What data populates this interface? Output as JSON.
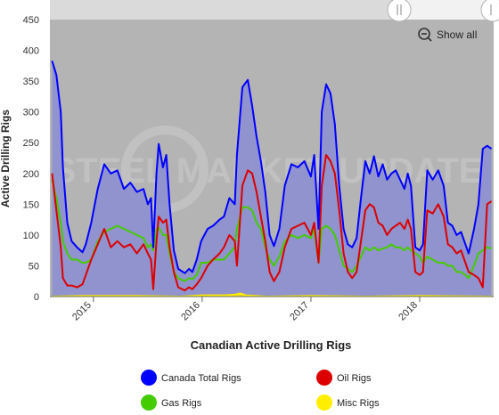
{
  "chart_data": {
    "type": "area",
    "title": "",
    "xlabel": "Canadian Active Drilling Rigs",
    "ylabel": "Active Drilling Rigs",
    "ylim": [
      0,
      450
    ],
    "xlim": [
      2014.6,
      2018.68
    ],
    "y_ticks": [
      0,
      50,
      100,
      150,
      200,
      250,
      300,
      350,
      400,
      450
    ],
    "x_ticks": [
      {
        "label": "2015",
        "value": 2015.0
      },
      {
        "label": "2016",
        "value": 2016.0
      },
      {
        "label": "2017",
        "value": 2017.0
      },
      {
        "label": "2018",
        "value": 2018.0
      }
    ],
    "grid": false,
    "legend_position": "bottom",
    "show_all_label": "Show all",
    "watermark_text": "STEEL MARKET UPDATE",
    "series": [
      {
        "name": "Canada Total Rigs",
        "color": "#0000ff",
        "points": [
          [
            2014.62,
            383
          ],
          [
            2014.66,
            360
          ],
          [
            2014.7,
            300
          ],
          [
            2014.72,
            210
          ],
          [
            2014.76,
            120
          ],
          [
            2014.8,
            90
          ],
          [
            2014.85,
            80
          ],
          [
            2014.9,
            72
          ],
          [
            2014.93,
            85
          ],
          [
            2014.98,
            120
          ],
          [
            2015.04,
            175
          ],
          [
            2015.1,
            215
          ],
          [
            2015.16,
            200
          ],
          [
            2015.22,
            205
          ],
          [
            2015.28,
            175
          ],
          [
            2015.34,
            185
          ],
          [
            2015.4,
            170
          ],
          [
            2015.46,
            175
          ],
          [
            2015.5,
            150
          ],
          [
            2015.53,
            160
          ],
          [
            2015.55,
            80
          ],
          [
            2015.58,
            200
          ],
          [
            2015.6,
            248
          ],
          [
            2015.64,
            210
          ],
          [
            2015.67,
            230
          ],
          [
            2015.7,
            150
          ],
          [
            2015.74,
            75
          ],
          [
            2015.78,
            45
          ],
          [
            2015.84,
            38
          ],
          [
            2015.88,
            45
          ],
          [
            2015.91,
            40
          ],
          [
            2015.95,
            60
          ],
          [
            2015.99,
            90
          ],
          [
            2016.05,
            110
          ],
          [
            2016.1,
            115
          ],
          [
            2016.16,
            125
          ],
          [
            2016.2,
            130
          ],
          [
            2016.25,
            160
          ],
          [
            2016.3,
            150
          ],
          [
            2016.32,
            230
          ],
          [
            2016.37,
            340
          ],
          [
            2016.42,
            352
          ],
          [
            2016.46,
            310
          ],
          [
            2016.5,
            260
          ],
          [
            2016.54,
            220
          ],
          [
            2016.58,
            170
          ],
          [
            2016.62,
            100
          ],
          [
            2016.66,
            82
          ],
          [
            2016.71,
            110
          ],
          [
            2016.76,
            180
          ],
          [
            2016.82,
            215
          ],
          [
            2016.88,
            210
          ],
          [
            2016.94,
            220
          ],
          [
            2017.0,
            195
          ],
          [
            2017.03,
            230
          ],
          [
            2017.07,
            110
          ],
          [
            2017.1,
            300
          ],
          [
            2017.14,
            345
          ],
          [
            2017.18,
            330
          ],
          [
            2017.22,
            280
          ],
          [
            2017.26,
            180
          ],
          [
            2017.3,
            110
          ],
          [
            2017.34,
            85
          ],
          [
            2017.38,
            80
          ],
          [
            2017.42,
            95
          ],
          [
            2017.46,
            160
          ],
          [
            2017.5,
            220
          ],
          [
            2017.54,
            200
          ],
          [
            2017.58,
            228
          ],
          [
            2017.62,
            195
          ],
          [
            2017.66,
            215
          ],
          [
            2017.7,
            190
          ],
          [
            2017.74,
            200
          ],
          [
            2017.78,
            205
          ],
          [
            2017.82,
            190
          ],
          [
            2017.86,
            175
          ],
          [
            2017.89,
            200
          ],
          [
            2017.92,
            180
          ],
          [
            2017.96,
            80
          ],
          [
            2018.0,
            75
          ],
          [
            2018.03,
            85
          ],
          [
            2018.07,
            205
          ],
          [
            2018.12,
            190
          ],
          [
            2018.17,
            205
          ],
          [
            2018.22,
            180
          ],
          [
            2018.26,
            120
          ],
          [
            2018.3,
            115
          ],
          [
            2018.34,
            100
          ],
          [
            2018.38,
            105
          ],
          [
            2018.42,
            85
          ],
          [
            2018.45,
            70
          ],
          [
            2018.5,
            110
          ],
          [
            2018.54,
            150
          ],
          [
            2018.58,
            240
          ],
          [
            2018.62,
            245
          ],
          [
            2018.66,
            240
          ]
        ]
      },
      {
        "name": "Oil Rigs",
        "color": "#dd0000",
        "points": [
          [
            2014.62,
            200
          ],
          [
            2014.66,
            140
          ],
          [
            2014.7,
            80
          ],
          [
            2014.72,
            30
          ],
          [
            2014.76,
            18
          ],
          [
            2014.8,
            18
          ],
          [
            2014.85,
            15
          ],
          [
            2014.9,
            20
          ],
          [
            2014.93,
            35
          ],
          [
            2014.98,
            60
          ],
          [
            2015.04,
            85
          ],
          [
            2015.1,
            110
          ],
          [
            2015.16,
            80
          ],
          [
            2015.22,
            90
          ],
          [
            2015.28,
            80
          ],
          [
            2015.34,
            85
          ],
          [
            2015.4,
            70
          ],
          [
            2015.46,
            85
          ],
          [
            2015.5,
            70
          ],
          [
            2015.53,
            60
          ],
          [
            2015.55,
            12
          ],
          [
            2015.58,
            90
          ],
          [
            2015.6,
            130
          ],
          [
            2015.64,
            120
          ],
          [
            2015.67,
            125
          ],
          [
            2015.7,
            80
          ],
          [
            2015.74,
            40
          ],
          [
            2015.78,
            15
          ],
          [
            2015.84,
            10
          ],
          [
            2015.88,
            15
          ],
          [
            2015.91,
            12
          ],
          [
            2015.95,
            20
          ],
          [
            2015.99,
            30
          ],
          [
            2016.05,
            50
          ],
          [
            2016.1,
            60
          ],
          [
            2016.16,
            70
          ],
          [
            2016.2,
            80
          ],
          [
            2016.25,
            100
          ],
          [
            2016.3,
            90
          ],
          [
            2016.32,
            50
          ],
          [
            2016.37,
            180
          ],
          [
            2016.42,
            205
          ],
          [
            2016.46,
            200
          ],
          [
            2016.5,
            170
          ],
          [
            2016.54,
            130
          ],
          [
            2016.58,
            90
          ],
          [
            2016.62,
            40
          ],
          [
            2016.66,
            25
          ],
          [
            2016.71,
            40
          ],
          [
            2016.76,
            80
          ],
          [
            2016.82,
            110
          ],
          [
            2016.88,
            115
          ],
          [
            2016.94,
            120
          ],
          [
            2017.0,
            100
          ],
          [
            2017.03,
            120
          ],
          [
            2017.07,
            55
          ],
          [
            2017.1,
            180
          ],
          [
            2017.14,
            230
          ],
          [
            2017.18,
            220
          ],
          [
            2017.22,
            200
          ],
          [
            2017.26,
            140
          ],
          [
            2017.3,
            70
          ],
          [
            2017.34,
            40
          ],
          [
            2017.38,
            30
          ],
          [
            2017.42,
            40
          ],
          [
            2017.46,
            90
          ],
          [
            2017.5,
            140
          ],
          [
            2017.54,
            150
          ],
          [
            2017.58,
            145
          ],
          [
            2017.62,
            120
          ],
          [
            2017.66,
            115
          ],
          [
            2017.7,
            100
          ],
          [
            2017.74,
            110
          ],
          [
            2017.78,
            115
          ],
          [
            2017.82,
            120
          ],
          [
            2017.86,
            110
          ],
          [
            2017.89,
            125
          ],
          [
            2017.92,
            110
          ],
          [
            2017.96,
            40
          ],
          [
            2018.0,
            35
          ],
          [
            2018.03,
            40
          ],
          [
            2018.07,
            140
          ],
          [
            2018.12,
            135
          ],
          [
            2018.17,
            150
          ],
          [
            2018.22,
            130
          ],
          [
            2018.26,
            85
          ],
          [
            2018.3,
            80
          ],
          [
            2018.34,
            70
          ],
          [
            2018.38,
            75
          ],
          [
            2018.42,
            55
          ],
          [
            2018.45,
            40
          ],
          [
            2018.5,
            35
          ],
          [
            2018.54,
            30
          ],
          [
            2018.58,
            15
          ],
          [
            2018.62,
            150
          ],
          [
            2018.66,
            155
          ]
        ]
      },
      {
        "name": "Gas Rigs",
        "color": "#44cc00",
        "points": [
          [
            2014.62,
            190
          ],
          [
            2014.66,
            160
          ],
          [
            2014.7,
            120
          ],
          [
            2014.72,
            90
          ],
          [
            2014.76,
            70
          ],
          [
            2014.8,
            60
          ],
          [
            2014.85,
            60
          ],
          [
            2014.9,
            55
          ],
          [
            2014.93,
            55
          ],
          [
            2014.98,
            60
          ],
          [
            2015.04,
            90
          ],
          [
            2015.1,
            105
          ],
          [
            2015.16,
            110
          ],
          [
            2015.22,
            115
          ],
          [
            2015.28,
            110
          ],
          [
            2015.34,
            105
          ],
          [
            2015.4,
            100
          ],
          [
            2015.46,
            95
          ],
          [
            2015.5,
            80
          ],
          [
            2015.53,
            85
          ],
          [
            2015.55,
            75
          ],
          [
            2015.58,
            110
          ],
          [
            2015.6,
            112
          ],
          [
            2015.64,
            100
          ],
          [
            2015.67,
            100
          ],
          [
            2015.7,
            70
          ],
          [
            2015.74,
            40
          ],
          [
            2015.78,
            30
          ],
          [
            2015.84,
            25
          ],
          [
            2015.88,
            30
          ],
          [
            2015.91,
            28
          ],
          [
            2015.95,
            35
          ],
          [
            2015.99,
            55
          ],
          [
            2016.05,
            55
          ],
          [
            2016.1,
            60
          ],
          [
            2016.16,
            60
          ],
          [
            2016.2,
            60
          ],
          [
            2016.25,
            70
          ],
          [
            2016.3,
            80
          ],
          [
            2016.32,
            110
          ],
          [
            2016.37,
            145
          ],
          [
            2016.42,
            145
          ],
          [
            2016.46,
            140
          ],
          [
            2016.5,
            120
          ],
          [
            2016.54,
            110
          ],
          [
            2016.58,
            80
          ],
          [
            2016.62,
            60
          ],
          [
            2016.66,
            50
          ],
          [
            2016.71,
            65
          ],
          [
            2016.76,
            90
          ],
          [
            2016.82,
            100
          ],
          [
            2016.88,
            95
          ],
          [
            2016.94,
            100
          ],
          [
            2017.0,
            95
          ],
          [
            2017.03,
            110
          ],
          [
            2017.07,
            55
          ],
          [
            2017.1,
            110
          ],
          [
            2017.14,
            115
          ],
          [
            2017.18,
            110
          ],
          [
            2017.22,
            100
          ],
          [
            2017.26,
            75
          ],
          [
            2017.3,
            50
          ],
          [
            2017.34,
            45
          ],
          [
            2017.38,
            40
          ],
          [
            2017.42,
            50
          ],
          [
            2017.46,
            65
          ],
          [
            2017.5,
            80
          ],
          [
            2017.54,
            75
          ],
          [
            2017.58,
            80
          ],
          [
            2017.62,
            75
          ],
          [
            2017.66,
            78
          ],
          [
            2017.7,
            80
          ],
          [
            2017.74,
            85
          ],
          [
            2017.78,
            80
          ],
          [
            2017.82,
            80
          ],
          [
            2017.86,
            75
          ],
          [
            2017.89,
            80
          ],
          [
            2017.92,
            75
          ],
          [
            2017.96,
            70
          ],
          [
            2018.0,
            65
          ],
          [
            2018.03,
            55
          ],
          [
            2018.07,
            65
          ],
          [
            2018.12,
            60
          ],
          [
            2018.17,
            55
          ],
          [
            2018.22,
            55
          ],
          [
            2018.26,
            50
          ],
          [
            2018.3,
            50
          ],
          [
            2018.34,
            40
          ],
          [
            2018.38,
            40
          ],
          [
            2018.42,
            35
          ],
          [
            2018.45,
            30
          ],
          [
            2018.5,
            50
          ],
          [
            2018.54,
            70
          ],
          [
            2018.58,
            75
          ],
          [
            2018.62,
            80
          ],
          [
            2018.66,
            78
          ]
        ]
      },
      {
        "name": "Misc Rigs",
        "color": "#ffee00",
        "points": [
          [
            2014.62,
            0
          ],
          [
            2014.9,
            1
          ],
          [
            2015.4,
            1
          ],
          [
            2015.8,
            0
          ],
          [
            2016.0,
            2
          ],
          [
            2016.2,
            2
          ],
          [
            2016.3,
            3
          ],
          [
            2016.35,
            5
          ],
          [
            2016.4,
            2
          ],
          [
            2016.6,
            0
          ],
          [
            2017.0,
            1
          ],
          [
            2017.5,
            0
          ],
          [
            2018.0,
            1
          ],
          [
            2018.66,
            0
          ]
        ]
      }
    ]
  }
}
